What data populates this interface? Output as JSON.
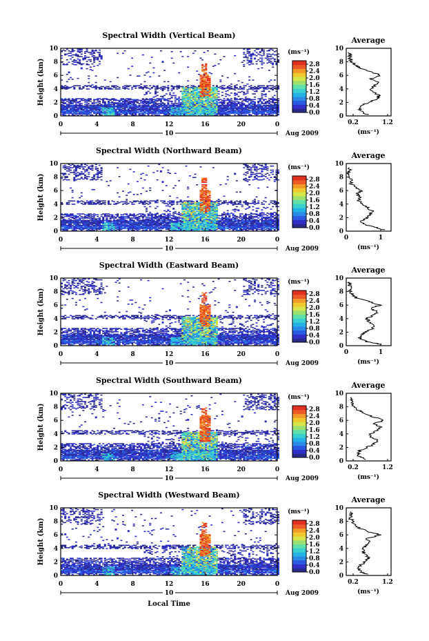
{
  "colorbar": {
    "unit": "(ms⁻¹)",
    "ticks": [
      "2.8",
      "2.4",
      "2.0",
      "1.6",
      "1.2",
      "0.8",
      "0.4",
      "0.0"
    ],
    "range": [
      0,
      3.0
    ],
    "colors": [
      "#2a2a8a",
      "#3030c8",
      "#2a5ae0",
      "#2a8ae6",
      "#25b3e6",
      "#3acfd0",
      "#5fe0a8",
      "#9be070",
      "#d6e64a",
      "#f0c830",
      "#f09a28",
      "#ec5a28",
      "#e03020"
    ]
  },
  "footer": {
    "xlabel": "Local Time"
  },
  "chart_data": [
    {
      "type": "heatmap",
      "title": "Spectral Width (Vertical Beam)",
      "ylabel": "Height (km)",
      "x_ticks": [
        "0",
        "4",
        "8",
        "12",
        "16",
        "20",
        "0"
      ],
      "xlim": [
        0,
        24
      ],
      "ylim": [
        0,
        10
      ],
      "y_ticks": [
        "10",
        "8",
        "6",
        "4",
        "2",
        "0"
      ],
      "date_marker": "10",
      "date_label": "Aug 2009",
      "grid": false,
      "average": {
        "title": "Average",
        "x_ticks": [
          "0.2",
          "1.2"
        ],
        "xlim": [
          0,
          1.3
        ],
        "xlabel": "(ms⁻¹)",
        "y_ticks": [
          "10",
          "8",
          "6",
          "4",
          "2",
          "0"
        ],
        "profile": [
          [
            0.6,
            0.2
          ],
          [
            0.45,
            0.5
          ],
          [
            0.4,
            1.0
          ],
          [
            0.45,
            1.5
          ],
          [
            0.65,
            2.0
          ],
          [
            0.9,
            2.5
          ],
          [
            0.95,
            3.0
          ],
          [
            0.8,
            3.5
          ],
          [
            0.7,
            4.0
          ],
          [
            0.85,
            4.5
          ],
          [
            0.9,
            5.0
          ],
          [
            0.7,
            5.5
          ],
          [
            1.0,
            6.0
          ],
          [
            0.7,
            6.5
          ],
          [
            0.45,
            7.0
          ],
          [
            0.25,
            7.5
          ],
          [
            0.15,
            8.0
          ],
          [
            0.1,
            8.5
          ],
          [
            0.12,
            9.0
          ],
          [
            0.1,
            9.5
          ]
        ]
      }
    },
    {
      "type": "heatmap",
      "title": "Spectral Width (Northward Beam)",
      "ylabel": "Height (km)",
      "x_ticks": [
        "0",
        "4",
        "8",
        "12",
        "16",
        "20",
        "0"
      ],
      "xlim": [
        0,
        24
      ],
      "ylim": [
        0,
        10
      ],
      "y_ticks": [
        "10",
        "8",
        "6",
        "4",
        "2",
        "0"
      ],
      "date_marker": "10",
      "date_label": "Aug 2009",
      "grid": false,
      "average": {
        "title": "Average",
        "x_ticks": [
          "0",
          "1"
        ],
        "xlim": [
          0,
          1.3
        ],
        "xlabel": "(ms⁻¹)",
        "y_ticks": [
          "10",
          "8",
          "6",
          "4",
          "2",
          "0"
        ],
        "profile": [
          [
            1.1,
            0.2
          ],
          [
            0.8,
            0.6
          ],
          [
            0.5,
            1.0
          ],
          [
            0.45,
            1.5
          ],
          [
            0.6,
            2.0
          ],
          [
            0.7,
            2.5
          ],
          [
            0.75,
            3.0
          ],
          [
            0.6,
            3.5
          ],
          [
            0.5,
            4.0
          ],
          [
            0.35,
            4.5
          ],
          [
            0.4,
            5.0
          ],
          [
            0.3,
            5.5
          ],
          [
            0.45,
            6.0
          ],
          [
            0.25,
            6.5
          ],
          [
            0.15,
            7.0
          ],
          [
            0.15,
            7.5
          ],
          [
            0.1,
            8.0
          ],
          [
            0.08,
            8.5
          ],
          [
            0.1,
            9.0
          ],
          [
            0.08,
            9.5
          ]
        ]
      }
    },
    {
      "type": "heatmap",
      "title": "Spectral Width (Eastward Beam)",
      "ylabel": "Height (km)",
      "x_ticks": [
        "0",
        "4",
        "8",
        "12",
        "16",
        "20",
        "0"
      ],
      "xlim": [
        0,
        24
      ],
      "ylim": [
        0,
        10
      ],
      "y_ticks": [
        "10",
        "8",
        "6",
        "4",
        "2",
        "0"
      ],
      "date_marker": "10",
      "date_label": "Aug 2009",
      "grid": false,
      "average": {
        "title": "Average",
        "x_ticks": [
          "0",
          "1"
        ],
        "xlim": [
          0,
          1.3
        ],
        "xlabel": "(ms⁻¹)",
        "y_ticks": [
          "10",
          "8",
          "6",
          "4",
          "2",
          "0"
        ],
        "profile": [
          [
            1.0,
            0.2
          ],
          [
            0.6,
            0.6
          ],
          [
            0.4,
            1.0
          ],
          [
            0.4,
            1.5
          ],
          [
            0.55,
            2.0
          ],
          [
            0.75,
            2.5
          ],
          [
            0.8,
            3.0
          ],
          [
            0.65,
            3.5
          ],
          [
            0.6,
            4.0
          ],
          [
            0.8,
            4.5
          ],
          [
            0.9,
            5.0
          ],
          [
            0.7,
            5.5
          ],
          [
            1.0,
            6.0
          ],
          [
            0.7,
            6.5
          ],
          [
            0.3,
            7.0
          ],
          [
            0.2,
            7.5
          ],
          [
            0.1,
            8.0
          ],
          [
            0.1,
            8.5
          ],
          [
            0.1,
            9.0
          ],
          [
            0.1,
            9.5
          ]
        ]
      }
    },
    {
      "type": "heatmap",
      "title": "Spectral Width (Southward Beam)",
      "ylabel": "Height (km)",
      "x_ticks": [
        "0",
        "4",
        "8",
        "12",
        "16",
        "20",
        "0"
      ],
      "xlim": [
        0,
        24
      ],
      "ylim": [
        0,
        10
      ],
      "y_ticks": [
        "10",
        "8",
        "6",
        "4",
        "2",
        "0"
      ],
      "date_marker": "10",
      "date_label": "Aug 2009",
      "grid": false,
      "average": {
        "title": "Average",
        "x_ticks": [
          "0.2",
          "1.2"
        ],
        "xlim": [
          0,
          1.3
        ],
        "xlabel": "(ms⁻¹)",
        "y_ticks": [
          "10",
          "8",
          "6",
          "4",
          "2",
          "0"
        ],
        "profile": [
          [
            0.6,
            0.2
          ],
          [
            0.4,
            0.6
          ],
          [
            0.35,
            1.0
          ],
          [
            0.4,
            1.5
          ],
          [
            0.6,
            2.0
          ],
          [
            0.8,
            2.5
          ],
          [
            0.9,
            3.0
          ],
          [
            0.75,
            3.5
          ],
          [
            0.7,
            4.0
          ],
          [
            0.9,
            4.5
          ],
          [
            1.0,
            5.0
          ],
          [
            0.8,
            5.5
          ],
          [
            1.1,
            6.0
          ],
          [
            0.8,
            6.5
          ],
          [
            0.55,
            7.0
          ],
          [
            0.35,
            7.5
          ],
          [
            0.25,
            8.0
          ],
          [
            0.15,
            8.5
          ],
          [
            0.15,
            9.0
          ],
          [
            0.1,
            9.5
          ]
        ]
      }
    },
    {
      "type": "heatmap",
      "title": "Spectral Width (Westward Beam)",
      "ylabel": "Height (km)",
      "x_ticks": [
        "0",
        "4",
        "8",
        "12",
        "16",
        "20",
        "0"
      ],
      "xlim": [
        0,
        24
      ],
      "ylim": [
        0,
        10
      ],
      "y_ticks": [
        "10",
        "8",
        "6",
        "4",
        "2",
        "0"
      ],
      "date_marker": "10",
      "date_label": "Aug 2009",
      "grid": false,
      "average": {
        "title": "Average",
        "x_ticks": [
          "0.2",
          "1.2"
        ],
        "xlim": [
          0,
          1.3
        ],
        "xlabel": "(ms⁻¹)",
        "y_ticks": [
          "10",
          "8",
          "6",
          "4",
          "2",
          "0"
        ],
        "profile": [
          [
            0.6,
            0.2
          ],
          [
            0.4,
            0.6
          ],
          [
            0.35,
            1.0
          ],
          [
            0.4,
            1.5
          ],
          [
            0.55,
            2.0
          ],
          [
            0.65,
            2.5
          ],
          [
            0.6,
            3.0
          ],
          [
            0.5,
            3.5
          ],
          [
            0.5,
            4.0
          ],
          [
            0.6,
            4.5
          ],
          [
            0.7,
            5.0
          ],
          [
            0.6,
            5.5
          ],
          [
            1.0,
            6.0
          ],
          [
            0.6,
            6.5
          ],
          [
            0.4,
            7.0
          ],
          [
            0.25,
            7.5
          ],
          [
            0.2,
            8.0
          ],
          [
            0.1,
            8.5
          ],
          [
            0.15,
            9.0
          ],
          [
            0.1,
            9.5
          ]
        ]
      }
    }
  ]
}
